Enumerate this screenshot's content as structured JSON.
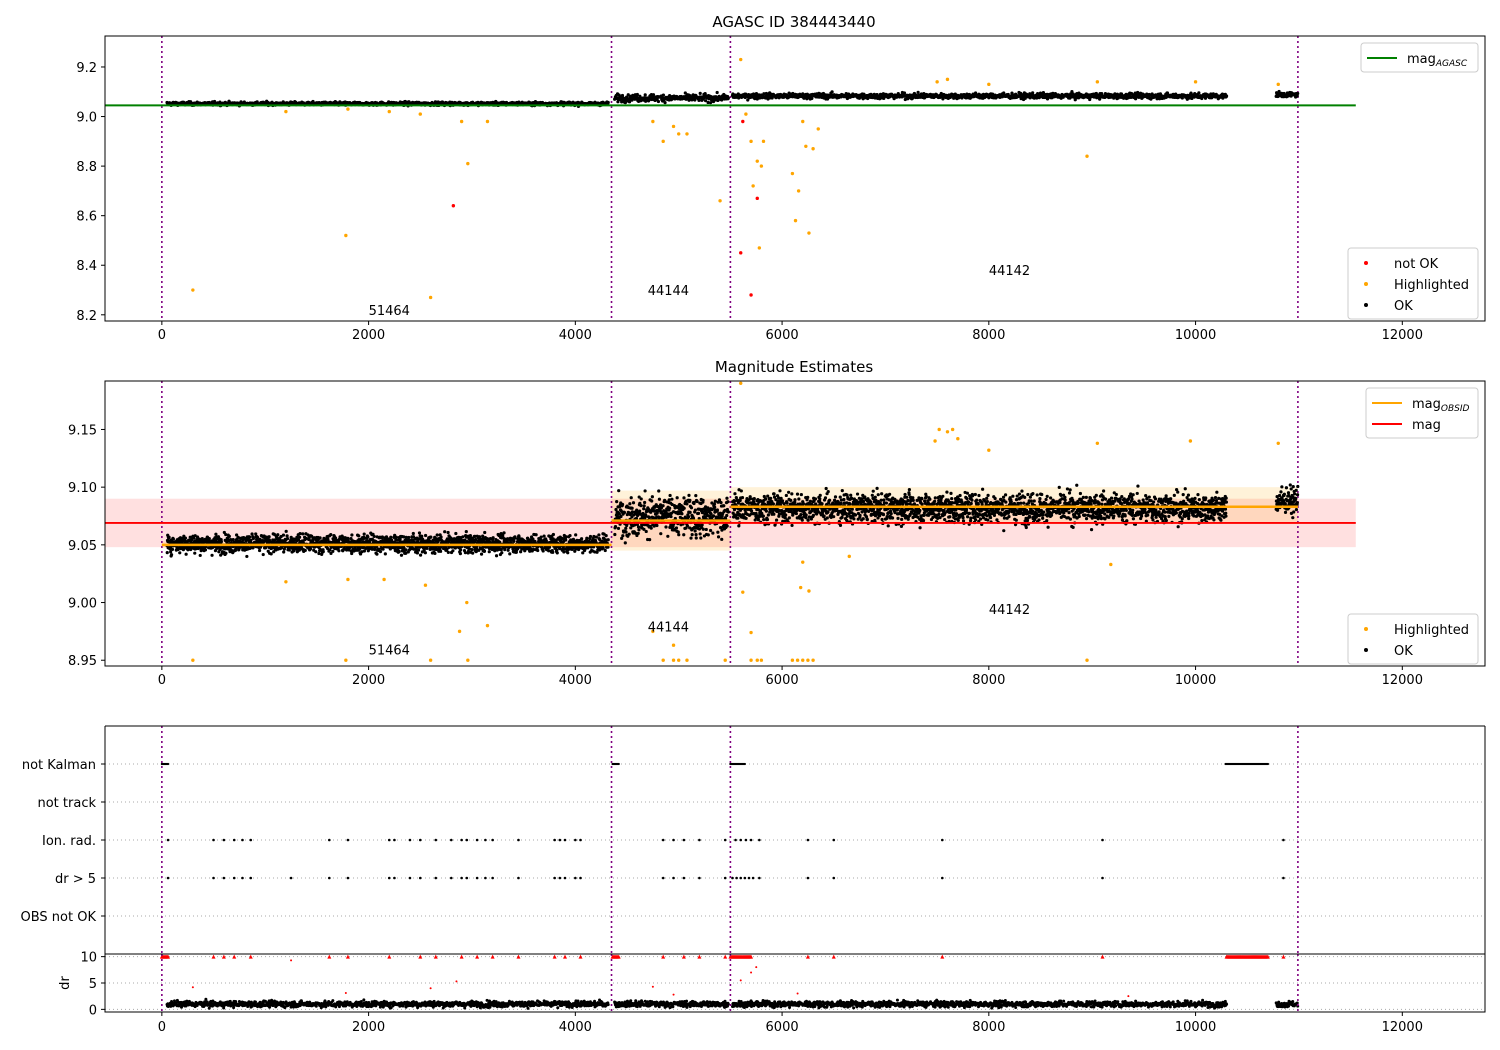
{
  "chart_data": [
    {
      "type": "scatter",
      "title": "AGASC ID 384443440",
      "xlim": [
        -550,
        12800
      ],
      "ylim": [
        8.175,
        9.325
      ],
      "xticks": [
        0,
        2000,
        4000,
        6000,
        8000,
        10000,
        12000
      ],
      "yticks": [
        8.2,
        8.4,
        8.6,
        8.8,
        9.0,
        9.2
      ],
      "vlines": [
        0,
        4350,
        5500,
        10990
      ],
      "obsid_labels": [
        {
          "text": "51464",
          "x": 2000,
          "y": 8.2
        },
        {
          "text": "44144",
          "x": 4700,
          "y": 8.28
        },
        {
          "text": "44142",
          "x": 8000,
          "y": 8.36
        }
      ],
      "hline": {
        "name": "mag_AGASC",
        "value": 9.045,
        "x_range": [
          -550,
          11550
        ],
        "color": "#008000"
      },
      "segments": [
        {
          "x0": 50,
          "x1": 4320,
          "mean": 9.052,
          "sd": 0.009
        },
        {
          "x0": 4380,
          "x1": 5480,
          "mean": 9.075,
          "sd": 0.018
        },
        {
          "x0": 5520,
          "x1": 10300,
          "mean": 9.083,
          "sd": 0.014
        },
        {
          "x0": 10780,
          "x1": 10990,
          "mean": 9.088,
          "sd": 0.012
        }
      ],
      "highlighted": [
        [
          300,
          8.3
        ],
        [
          1780,
          8.52
        ],
        [
          2600,
          8.27
        ],
        [
          2900,
          8.98
        ],
        [
          2960,
          8.81
        ],
        [
          3150,
          8.98
        ],
        [
          1200,
          9.02
        ],
        [
          1800,
          9.03
        ],
        [
          2200,
          9.02
        ],
        [
          2500,
          9.01
        ],
        [
          4750,
          8.98
        ],
        [
          4850,
          8.9
        ],
        [
          4950,
          8.96
        ],
        [
          5000,
          8.93
        ],
        [
          5080,
          8.93
        ],
        [
          5400,
          8.66
        ],
        [
          5600,
          9.23
        ],
        [
          5650,
          9.01
        ],
        [
          5700,
          8.9
        ],
        [
          5720,
          8.72
        ],
        [
          5760,
          8.82
        ],
        [
          5780,
          8.47
        ],
        [
          5800,
          8.8
        ],
        [
          5820,
          8.9
        ],
        [
          6100,
          8.77
        ],
        [
          6130,
          8.58
        ],
        [
          6160,
          8.7
        ],
        [
          6200,
          8.98
        ],
        [
          6230,
          8.88
        ],
        [
          6260,
          8.53
        ],
        [
          6300,
          8.87
        ],
        [
          6350,
          8.95
        ],
        [
          7500,
          9.14
        ],
        [
          7600,
          9.15
        ],
        [
          8000,
          9.13
        ],
        [
          8950,
          8.84
        ],
        [
          9050,
          9.14
        ],
        [
          10000,
          9.14
        ],
        [
          10800,
          9.13
        ]
      ],
      "not_ok": [
        [
          2820,
          8.64
        ],
        [
          5620,
          8.98
        ],
        [
          5700,
          8.28
        ],
        [
          5760,
          8.67
        ],
        [
          5600,
          8.45
        ]
      ],
      "legend": [
        {
          "label": "mag",
          "sub": "AGASC",
          "color": "#008000"
        },
        {
          "label": "not OK",
          "color": "#ff0000"
        },
        {
          "label": "Highlighted",
          "color": "#ffa500"
        },
        {
          "label": "OK",
          "color": "#000000"
        }
      ]
    },
    {
      "type": "scatter",
      "title": "Magnitude Estimates",
      "xlim": [
        -550,
        12800
      ],
      "ylim": [
        8.945,
        9.192
      ],
      "xticks": [
        0,
        2000,
        4000,
        6000,
        8000,
        10000,
        12000
      ],
      "yticks": [
        8.95,
        9.0,
        9.05,
        9.1,
        9.15
      ],
      "ytick_labels": [
        "8.95",
        "9.00",
        "9.05",
        "9.10",
        "9.15"
      ],
      "vlines": [
        0,
        4350,
        5500,
        10990
      ],
      "obsid_labels": [
        {
          "text": "51464",
          "x": 2000,
          "y": 8.955
        },
        {
          "text": "44144",
          "x": 4700,
          "y": 8.975
        },
        {
          "text": "44142",
          "x": 8000,
          "y": 8.99
        }
      ],
      "mag": {
        "name": "mag",
        "value": 9.069,
        "band": [
          9.048,
          9.09
        ],
        "x_range": [
          -550,
          11550
        ],
        "color": "#ff0000"
      },
      "mag_obsid": [
        {
          "x0": 0,
          "x1": 4350,
          "value": 9.05,
          "band": [
            9.047,
            9.053
          ]
        },
        {
          "x0": 4350,
          "x1": 5500,
          "value": 9.071,
          "band": [
            9.045,
            9.097
          ]
        },
        {
          "x0": 5500,
          "x1": 10990,
          "value": 9.083,
          "band": [
            9.068,
            9.1
          ]
        }
      ],
      "segments": [
        {
          "x0": 50,
          "x1": 4320,
          "mean": 9.051,
          "sd": 0.01
        },
        {
          "x0": 4380,
          "x1": 5480,
          "mean": 9.075,
          "sd": 0.022
        },
        {
          "x0": 5520,
          "x1": 10300,
          "mean": 9.082,
          "sd": 0.016
        },
        {
          "x0": 10780,
          "x1": 10990,
          "mean": 9.088,
          "sd": 0.014
        }
      ],
      "highlighted": [
        [
          300,
          8.95
        ],
        [
          1780,
          8.95
        ],
        [
          2600,
          8.95
        ],
        [
          2960,
          8.95
        ],
        [
          4850,
          8.95
        ],
        [
          4950,
          8.95
        ],
        [
          5000,
          8.95
        ],
        [
          5080,
          8.95
        ],
        [
          5450,
          8.95
        ],
        [
          5700,
          8.95
        ],
        [
          5760,
          8.95
        ],
        [
          5800,
          8.95
        ],
        [
          6100,
          8.95
        ],
        [
          6150,
          8.95
        ],
        [
          6200,
          8.95
        ],
        [
          6250,
          8.95
        ],
        [
          6300,
          8.95
        ],
        [
          8950,
          8.95
        ],
        [
          2880,
          8.975
        ],
        [
          3150,
          8.98
        ],
        [
          2550,
          9.015
        ],
        [
          2950,
          9.0
        ],
        [
          1200,
          9.018
        ],
        [
          1800,
          9.02
        ],
        [
          2150,
          9.02
        ],
        [
          4750,
          8.975
        ],
        [
          4950,
          8.963
        ],
        [
          5620,
          9.009
        ],
        [
          5700,
          8.974
        ],
        [
          6180,
          9.013
        ],
        [
          6260,
          9.01
        ],
        [
          9180,
          9.033
        ],
        [
          7480,
          9.14
        ],
        [
          7520,
          9.15
        ],
        [
          7600,
          9.148
        ],
        [
          7650,
          9.15
        ],
        [
          7700,
          9.142
        ],
        [
          8000,
          9.132
        ],
        [
          9050,
          9.138
        ],
        [
          9950,
          9.14
        ],
        [
          10800,
          9.138
        ],
        [
          5600,
          9.19
        ],
        [
          6200,
          9.035
        ],
        [
          6650,
          9.04
        ]
      ],
      "legend": [
        {
          "label": "mag",
          "sub": "OBSID",
          "color": "#ffa500"
        },
        {
          "label": "mag",
          "color": "#ff0000"
        },
        {
          "label": "Highlighted",
          "color": "#ffa500"
        },
        {
          "label": "OK",
          "color": "#000000"
        }
      ]
    },
    {
      "type": "scatter",
      "title": "",
      "xlim": [
        -550,
        12800
      ],
      "categories": [
        "not Kalman",
        "not track",
        "Ion. rad.",
        "dr > 5",
        "OBS not OK"
      ],
      "vlines": [
        0,
        4350,
        5500,
        10990
      ],
      "flag_ranges": {
        "not Kalman": [
          [
            0,
            60
          ],
          [
            4360,
            4420
          ],
          [
            5500,
            5640
          ],
          [
            10290,
            10700
          ]
        ],
        "Ion. rad.": [
          [
            60
          ],
          [
            500
          ],
          [
            600
          ],
          [
            700
          ],
          [
            780
          ],
          [
            860
          ],
          [
            1620
          ],
          [
            1800
          ],
          [
            2200
          ],
          [
            2250
          ],
          [
            2400
          ],
          [
            2500
          ],
          [
            2650
          ],
          [
            2800
          ],
          [
            2900
          ],
          [
            2950
          ],
          [
            3050
          ],
          [
            3130
          ],
          [
            3200
          ],
          [
            3450
          ],
          [
            3800
          ],
          [
            3850
          ],
          [
            3900
          ],
          [
            4000
          ],
          [
            4050
          ],
          [
            4850
          ],
          [
            4950
          ],
          [
            5050
          ],
          [
            5200
          ],
          [
            5450
          ],
          [
            5550
          ],
          [
            5600
          ],
          [
            5650
          ],
          [
            5700
          ],
          [
            5780
          ],
          [
            6250
          ],
          [
            6500
          ],
          [
            7550
          ],
          [
            9100
          ],
          [
            10850
          ]
        ],
        "dr > 5": [
          [
            60
          ],
          [
            500
          ],
          [
            600
          ],
          [
            700
          ],
          [
            780
          ],
          [
            860
          ],
          [
            1250
          ],
          [
            1620
          ],
          [
            1800
          ],
          [
            2200
          ],
          [
            2250
          ],
          [
            2400
          ],
          [
            2500
          ],
          [
            2650
          ],
          [
            2800
          ],
          [
            2900
          ],
          [
            2950
          ],
          [
            3050
          ],
          [
            3130
          ],
          [
            3200
          ],
          [
            3450
          ],
          [
            3800
          ],
          [
            3850
          ],
          [
            3900
          ],
          [
            4000
          ],
          [
            4050
          ],
          [
            4850
          ],
          [
            4950
          ],
          [
            5050
          ],
          [
            5200
          ],
          [
            5450
          ],
          [
            5520
          ],
          [
            5560
          ],
          [
            5600
          ],
          [
            5640
          ],
          [
            5680
          ],
          [
            5720
          ],
          [
            5780
          ],
          [
            6250
          ],
          [
            6500
          ],
          [
            7550
          ],
          [
            9100
          ],
          [
            10850
          ]
        ]
      },
      "dr_panel": {
        "ylabel": "dr",
        "yticks": [
          0,
          5,
          10
        ],
        "ylim": [
          -0.5,
          10.5
        ],
        "x_ranges": [
          [
            50,
            4320
          ],
          [
            4380,
            5480
          ],
          [
            5520,
            10300
          ],
          [
            10780,
            10990
          ]
        ],
        "typical": 1.0,
        "clipped_at_10": [
          [
            0,
            60
          ],
          [
            500
          ],
          [
            600
          ],
          [
            700
          ],
          [
            860
          ],
          [
            1620
          ],
          [
            1800
          ],
          [
            2200
          ],
          [
            2500
          ],
          [
            2650
          ],
          [
            2900
          ],
          [
            3050
          ],
          [
            3200
          ],
          [
            3450
          ],
          [
            3800
          ],
          [
            3900
          ],
          [
            4050
          ],
          [
            4360,
            4420
          ],
          [
            4850
          ],
          [
            5050
          ],
          [
            5200
          ],
          [
            5450
          ],
          [
            5500,
            5700
          ],
          [
            6250
          ],
          [
            6500
          ],
          [
            7550
          ],
          [
            9100
          ],
          [
            10300,
            10700
          ],
          [
            10850
          ]
        ],
        "red_points": [
          [
            300,
            4.2
          ],
          [
            1250,
            9.3
          ],
          [
            1780,
            3.1
          ],
          [
            2600,
            4.0
          ],
          [
            2850,
            5.3
          ],
          [
            4750,
            4.3
          ],
          [
            4950,
            2.8
          ],
          [
            5600,
            5.5
          ],
          [
            5700,
            7.0
          ],
          [
            5750,
            8.0
          ],
          [
            6150,
            3.0
          ],
          [
            9350,
            2.5
          ]
        ]
      },
      "xticks": [
        0,
        2000,
        4000,
        6000,
        8000,
        10000,
        12000
      ]
    }
  ]
}
